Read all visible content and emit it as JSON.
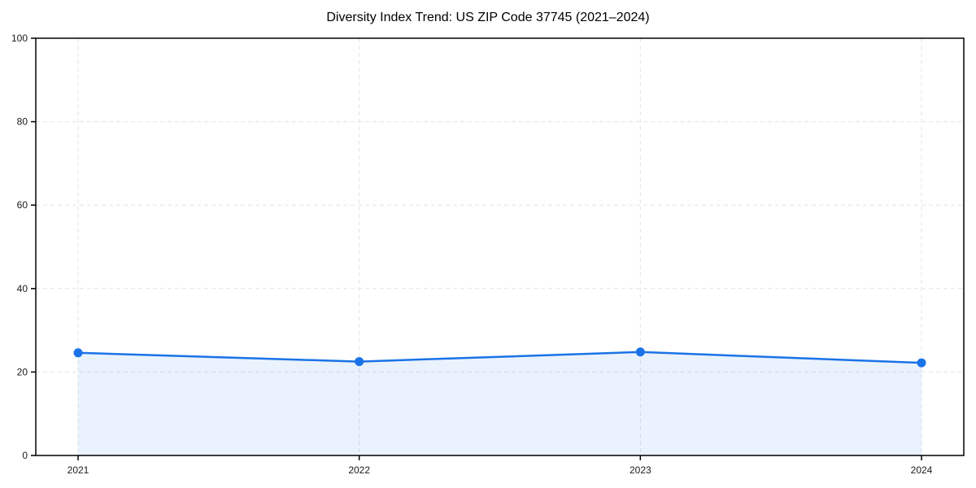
{
  "page": {
    "background": "#ffffff"
  },
  "chart_data": {
    "type": "line",
    "title": "Diversity Index Trend: US ZIP Code 37745 (2021–2024)",
    "xlabel": "",
    "ylabel": "",
    "x": [
      "2021",
      "2022",
      "2023",
      "2024"
    ],
    "series": [
      {
        "name": "Diversity Index",
        "values": [
          24.6,
          22.5,
          24.8,
          22.2
        ]
      }
    ],
    "ylim": [
      0,
      100
    ],
    "yticks": [
      0,
      20,
      40,
      60,
      80,
      100
    ],
    "grid": "dashed-both",
    "legend": "none",
    "area_fill": true,
    "colors": {
      "line": "#1a73e8",
      "marker": "#1a73e8",
      "fill": "#1a73e8",
      "fill_opacity": 0.09,
      "grid": "#e4e4e4",
      "axis_frame": "#000000",
      "tick_text": "#1a1a1a",
      "title_text": "#000000"
    }
  }
}
